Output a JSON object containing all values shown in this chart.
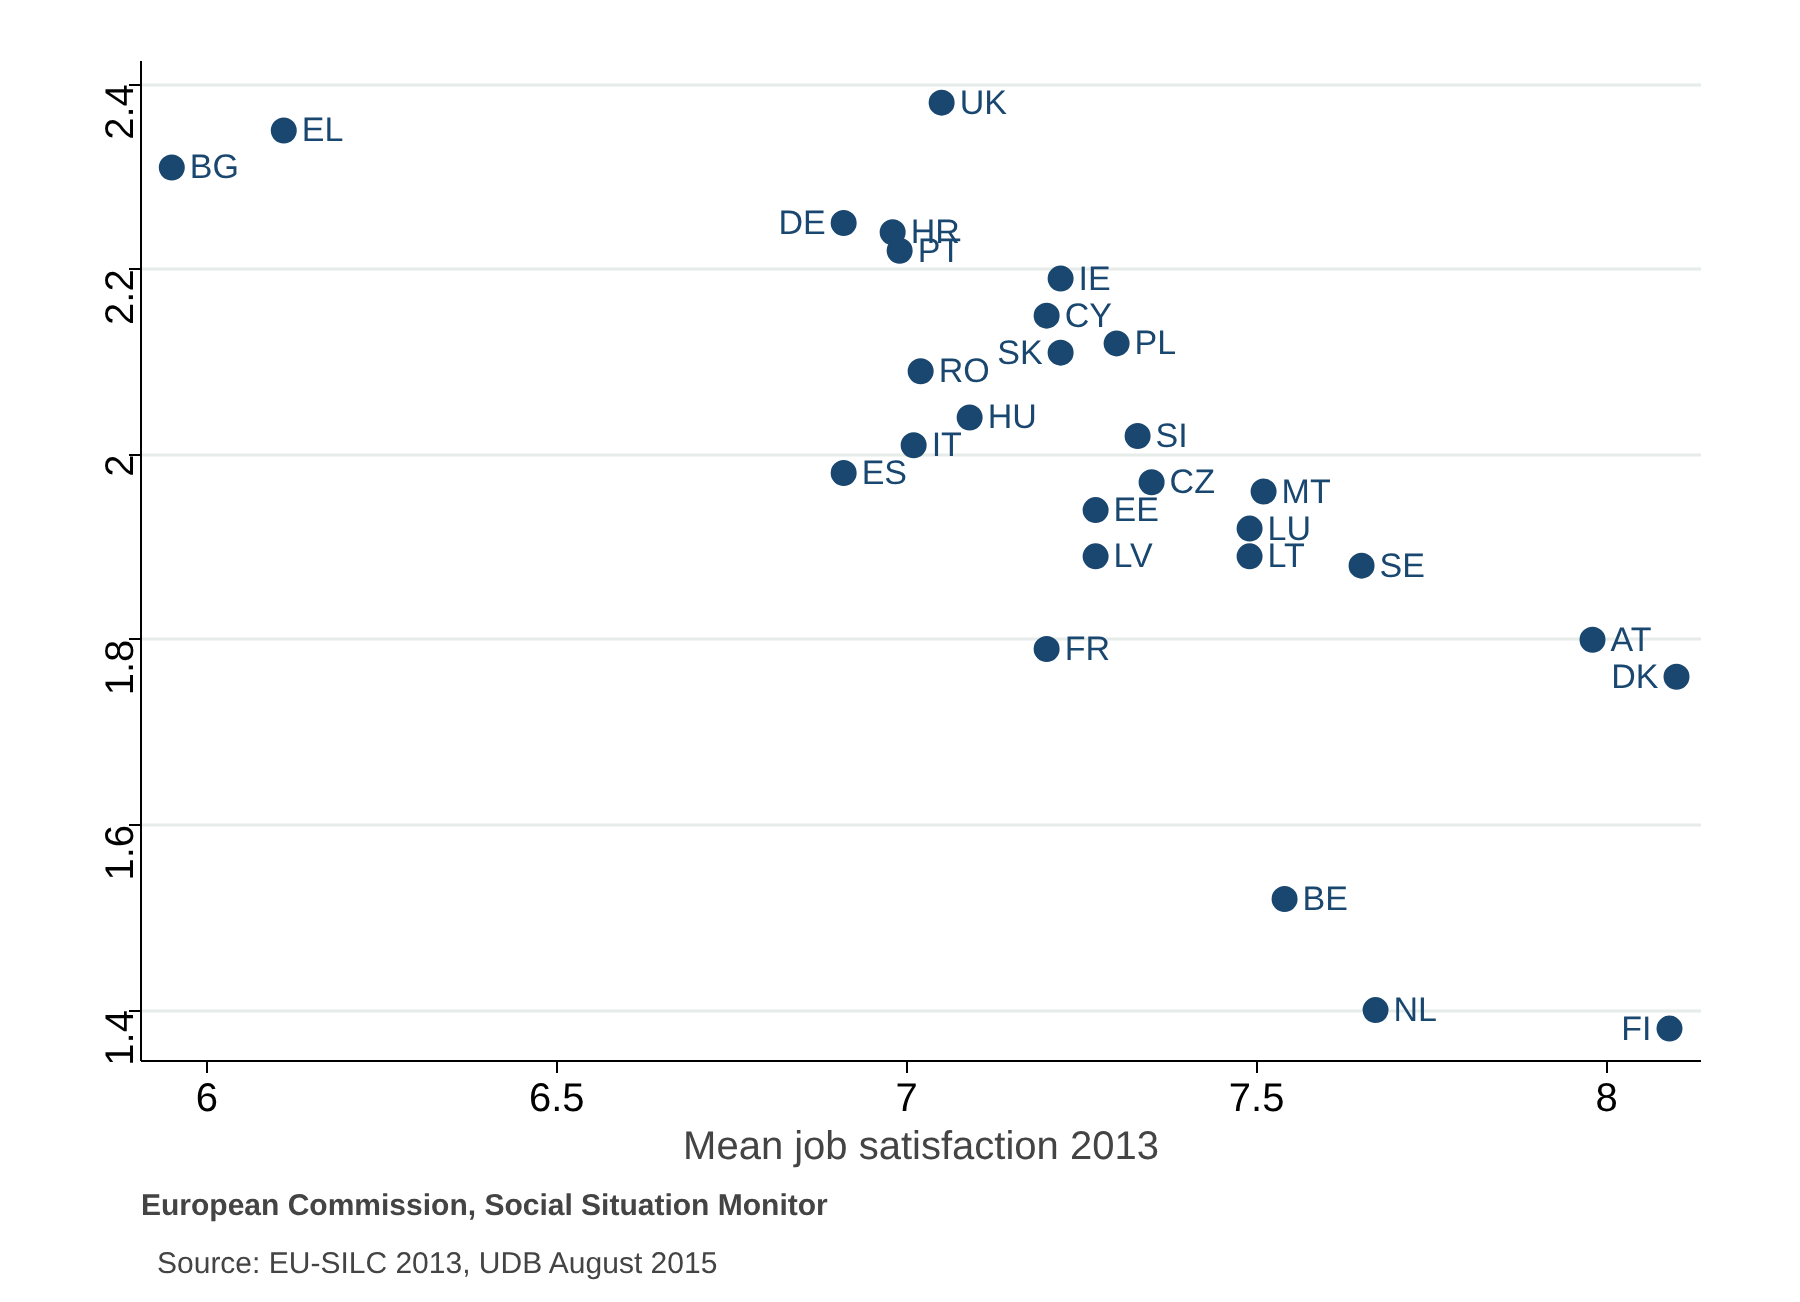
{
  "chart_data": {
    "type": "scatter",
    "xlabel": "Mean job satisfaction 2013",
    "x": [
      5.95,
      6.11,
      7.05,
      6.91,
      6.98,
      6.99,
      7.22,
      7.2,
      7.3,
      7.22,
      7.02,
      7.09,
      7.33,
      7.01,
      6.91,
      7.35,
      7.51,
      7.27,
      7.49,
      7.27,
      7.49,
      7.65,
      7.98,
      8.1,
      7.2,
      7.54,
      7.67,
      8.09
    ],
    "series": [
      {
        "color": "#1a476f",
        "values": [
          2.31,
          2.35,
          2.38,
          2.25,
          2.24,
          2.22,
          2.19,
          2.15,
          2.12,
          2.11,
          2.09,
          2.04,
          2.02,
          2.01,
          1.98,
          1.97,
          1.96,
          1.94,
          1.92,
          1.89,
          1.89,
          1.88,
          1.8,
          1.76,
          1.79,
          1.52,
          1.4,
          1.38
        ]
      }
    ],
    "xlim": [
      5.906,
      8.135
    ],
    "ylim": [
      1.345,
      2.425
    ],
    "xticks": [
      6,
      6.5,
      7,
      7.5,
      8
    ],
    "yticks": [
      1.4,
      1.6,
      1.8,
      2,
      2.2,
      2.4
    ],
    "grid": "y",
    "marker": "circle",
    "annotations": [
      {
        "text": "BG",
        "x": 5.95,
        "y": 2.31
      },
      {
        "text": "EL",
        "x": 6.11,
        "y": 2.35
      },
      {
        "text": "UK",
        "x": 7.05,
        "y": 2.38
      },
      {
        "text": "DE",
        "x": 6.91,
        "y": 2.25
      },
      {
        "text": "HR",
        "x": 6.98,
        "y": 2.24
      },
      {
        "text": "PT",
        "x": 6.99,
        "y": 2.22
      },
      {
        "text": "IE",
        "x": 7.22,
        "y": 2.19
      },
      {
        "text": "CY",
        "x": 7.2,
        "y": 2.15
      },
      {
        "text": "PL",
        "x": 7.3,
        "y": 2.12
      },
      {
        "text": "SK",
        "x": 7.22,
        "y": 2.11
      },
      {
        "text": "RO",
        "x": 7.02,
        "y": 2.09
      },
      {
        "text": "HU",
        "x": 7.09,
        "y": 2.04
      },
      {
        "text": "SI",
        "x": 7.33,
        "y": 2.02
      },
      {
        "text": "IT",
        "x": 7.01,
        "y": 2.01
      },
      {
        "text": "ES",
        "x": 6.91,
        "y": 1.98
      },
      {
        "text": "CZ",
        "x": 7.35,
        "y": 1.97
      },
      {
        "text": "MT",
        "x": 7.51,
        "y": 1.96
      },
      {
        "text": "EE",
        "x": 7.27,
        "y": 1.94
      },
      {
        "text": "LU",
        "x": 7.49,
        "y": 1.92
      },
      {
        "text": "LV",
        "x": 7.27,
        "y": 1.89
      },
      {
        "text": "LT",
        "x": 7.49,
        "y": 1.89
      },
      {
        "text": "SE",
        "x": 7.65,
        "y": 1.88
      },
      {
        "text": "AT",
        "x": 7.98,
        "y": 1.8
      },
      {
        "text": "DK",
        "x": 8.1,
        "y": 1.76
      },
      {
        "text": "FR",
        "x": 7.2,
        "y": 1.79
      },
      {
        "text": "BE",
        "x": 7.54,
        "y": 1.52
      },
      {
        "text": "NL",
        "x": 7.67,
        "y": 1.4
      },
      {
        "text": "FI",
        "x": 8.09,
        "y": 1.38
      },
      "Source: EU-SILC 2013, UDB August 2015",
      "European Commission, Social Situation Monitor"
    ]
  }
}
